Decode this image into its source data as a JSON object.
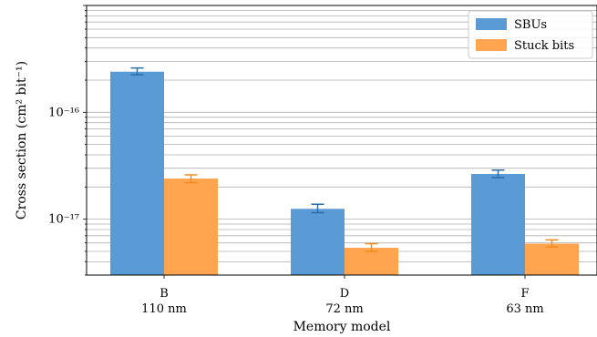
{
  "chart_data": {
    "type": "bar",
    "y_scale": "log",
    "grid": "horizontal major and minor",
    "legend_position": "top-right",
    "categories": [
      {
        "name": "B",
        "node": "110 nm"
      },
      {
        "name": "D",
        "node": "72 nm"
      },
      {
        "name": "F",
        "node": "63 nm"
      }
    ],
    "series": [
      {
        "name": "SBUs",
        "color": "#5b9bd5",
        "values": [
          2.4e-16,
          1.25e-17,
          2.65e-17
        ],
        "err_low": [
          2.25e-16,
          1.15e-17,
          2.45e-17
        ],
        "err_high": [
          2.6e-16,
          1.38e-17,
          2.88e-17
        ]
      },
      {
        "name": "Stuck bits",
        "color": "#ffa54f",
        "values": [
          2.4e-17,
          5.4e-18,
          5.9e-18
        ],
        "err_low": [
          2.2e-17,
          5e-18,
          5.5e-18
        ],
        "err_high": [
          2.6e-17,
          5.9e-18,
          6.4e-18
        ]
      }
    ],
    "xlabel": "Memory model",
    "ylabel": "Cross section (cm² bit⁻¹)",
    "ylim": [
      3e-18,
      1e-15
    ],
    "y_tick_labels": [
      {
        "value": 1e-16,
        "label": "10⁻¹⁶"
      },
      {
        "value": 1e-17,
        "label": "10⁻¹⁷"
      }
    ]
  }
}
